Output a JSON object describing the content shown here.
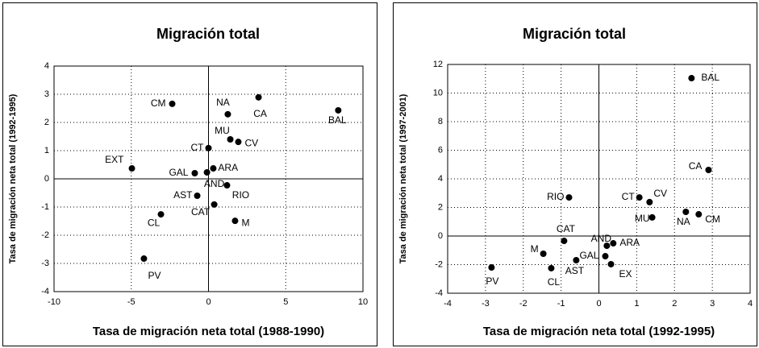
{
  "chart_data": [
    {
      "type": "scatter",
      "title": "Migración total",
      "x_label": "Tasa de migración neta total (1988-1990)",
      "y_label": "Tasa de migración neta total (1992-1995)",
      "xlim": [
        -10,
        10
      ],
      "ylim": [
        -4,
        4
      ],
      "xticks": [
        -10,
        -5,
        0,
        5,
        10
      ],
      "yticks": [
        -4,
        -3,
        -2,
        -1,
        0,
        1,
        2,
        3,
        4
      ],
      "grid": true,
      "color": "#000000",
      "point_labels": [
        "CM",
        "NA",
        "CA",
        "BAL",
        "MU",
        "CV",
        "CT",
        "EXT",
        "GAL",
        "AND",
        "ARA",
        "RIO",
        "AST",
        "CAT",
        "CL",
        "M",
        "PV"
      ],
      "x": [
        -2.35,
        1.25,
        3.24,
        8.4,
        1.41,
        1.93,
        0,
        -4.96,
        -0.89,
        -0.1,
        0.31,
        1.2,
        -0.73,
        0.37,
        -3.08,
        1.72,
        -4.18
      ],
      "values": [
        2.66,
        2.29,
        2.89,
        2.43,
        1.4,
        1.31,
        1.09,
        0.37,
        0.2,
        0.23,
        0.37,
        -0.23,
        -0.6,
        -0.91,
        -1.26,
        -1.49,
        -2.83
      ]
    },
    {
      "type": "scatter",
      "title": "Migración total",
      "x_label": "Tasa de migración neta total (1992-1995)",
      "y_label": "Tasa de migración neta total (1997-2001)",
      "xlim": [
        -4,
        4
      ],
      "ylim": [
        -4,
        12
      ],
      "xticks": [
        -4,
        -3,
        -2,
        -1,
        0,
        1,
        2,
        3,
        4
      ],
      "yticks": [
        -4,
        -2,
        0,
        2,
        4,
        6,
        8,
        10,
        12
      ],
      "grid": true,
      "color": "#000000",
      "point_labels": [
        "BAL",
        "CA",
        "RIO",
        "CT",
        "CV",
        "MU",
        "NA",
        "CM",
        "CAT",
        "M",
        "AND",
        "ARA",
        "GAL",
        "CL",
        "AST",
        "EX",
        "PV"
      ],
      "x": [
        2.45,
        2.9,
        -0.79,
        1.07,
        1.34,
        1.41,
        2.3,
        2.64,
        -0.92,
        -1.47,
        0.21,
        0.38,
        0.17,
        -1.26,
        -0.6,
        0.32,
        -2.84
      ],
      "values": [
        11.04,
        4.62,
        2.7,
        2.7,
        2.37,
        1.3,
        1.69,
        1.52,
        -0.34,
        -1.24,
        -0.68,
        -0.51,
        -1.41,
        -2.25,
        -1.69,
        -1.97,
        -2.2
      ]
    }
  ]
}
